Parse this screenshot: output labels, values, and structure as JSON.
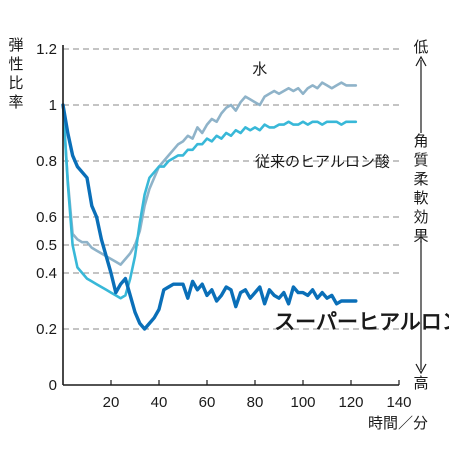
{
  "chart_data": {
    "type": "line",
    "ylabel": "弾性比率",
    "xlabel": "時間／分",
    "xlim": [
      0,
      140
    ],
    "ylim": [
      0,
      1.2
    ],
    "x_ticks": [
      "20",
      "40",
      "60",
      "80",
      "100",
      "120",
      "140"
    ],
    "y_ticks": [
      "0",
      "0.2",
      "0.4",
      "0.5",
      "0.6",
      "0.8",
      "1",
      "1.2"
    ],
    "grid": "horizontal dashed",
    "right_axis": {
      "title": "角質柔軟効果",
      "top_label": "低",
      "bottom_label": "高"
    },
    "series": [
      {
        "name": "水",
        "color": "#8fb3c9",
        "x": [
          0,
          2,
          4,
          6,
          8,
          10,
          12,
          14,
          16,
          18,
          20,
          22,
          24,
          26,
          28,
          30,
          32,
          34,
          36,
          38,
          40,
          42,
          44,
          46,
          48,
          50,
          52,
          54,
          56,
          58,
          60,
          62,
          64,
          66,
          68,
          70,
          72,
          74,
          76,
          78,
          80,
          82,
          84,
          86,
          88,
          90,
          92,
          94,
          96,
          98,
          100,
          102,
          104,
          106,
          108,
          110,
          112,
          114,
          116,
          118,
          120,
          122
        ],
        "values": [
          1.0,
          0.73,
          0.54,
          0.52,
          0.51,
          0.51,
          0.49,
          0.48,
          0.47,
          0.46,
          0.45,
          0.44,
          0.43,
          0.45,
          0.47,
          0.5,
          0.55,
          0.64,
          0.7,
          0.74,
          0.78,
          0.8,
          0.82,
          0.84,
          0.86,
          0.87,
          0.89,
          0.88,
          0.92,
          0.9,
          0.93,
          0.95,
          0.94,
          0.97,
          0.99,
          1.0,
          0.98,
          1.01,
          1.03,
          1.02,
          1.01,
          1.0,
          1.03,
          1.04,
          1.05,
          1.04,
          1.05,
          1.06,
          1.05,
          1.06,
          1.04,
          1.06,
          1.07,
          1.06,
          1.08,
          1.07,
          1.06,
          1.07,
          1.08,
          1.07,
          1.07,
          1.07
        ]
      },
      {
        "name": "従来のヒアルロン酸",
        "color": "#38b8d8",
        "x": [
          0,
          2,
          4,
          6,
          8,
          10,
          12,
          14,
          16,
          18,
          20,
          22,
          24,
          26,
          28,
          30,
          32,
          34,
          36,
          38,
          40,
          42,
          44,
          46,
          48,
          50,
          52,
          54,
          56,
          58,
          60,
          62,
          64,
          66,
          68,
          70,
          72,
          74,
          76,
          78,
          80,
          82,
          84,
          86,
          88,
          90,
          92,
          94,
          96,
          98,
          100,
          102,
          104,
          106,
          108,
          110,
          112,
          114,
          116,
          118,
          120,
          122
        ],
        "values": [
          1.0,
          0.72,
          0.5,
          0.42,
          0.4,
          0.38,
          0.37,
          0.36,
          0.35,
          0.34,
          0.33,
          0.32,
          0.31,
          0.32,
          0.38,
          0.46,
          0.58,
          0.68,
          0.74,
          0.76,
          0.78,
          0.78,
          0.8,
          0.81,
          0.82,
          0.82,
          0.84,
          0.84,
          0.86,
          0.86,
          0.88,
          0.87,
          0.89,
          0.88,
          0.9,
          0.89,
          0.91,
          0.9,
          0.92,
          0.91,
          0.92,
          0.91,
          0.93,
          0.92,
          0.92,
          0.93,
          0.93,
          0.94,
          0.93,
          0.93,
          0.94,
          0.93,
          0.94,
          0.94,
          0.93,
          0.94,
          0.94,
          0.94,
          0.93,
          0.94,
          0.94,
          0.94
        ]
      },
      {
        "name": "スーパーヒアルロン酸",
        "color": "#0a6fb8",
        "x": [
          0,
          2,
          4,
          6,
          8,
          10,
          12,
          14,
          16,
          18,
          20,
          22,
          24,
          26,
          28,
          30,
          32,
          34,
          36,
          38,
          40,
          42,
          44,
          46,
          48,
          50,
          52,
          54,
          56,
          58,
          60,
          62,
          64,
          66,
          68,
          70,
          72,
          74,
          76,
          78,
          80,
          82,
          84,
          86,
          88,
          90,
          92,
          94,
          96,
          98,
          100,
          102,
          104,
          106,
          108,
          110,
          112,
          114,
          116,
          118,
          120,
          122
        ],
        "values": [
          1.0,
          0.9,
          0.82,
          0.78,
          0.76,
          0.74,
          0.64,
          0.6,
          0.52,
          0.46,
          0.4,
          0.33,
          0.36,
          0.38,
          0.32,
          0.26,
          0.22,
          0.2,
          0.22,
          0.24,
          0.27,
          0.34,
          0.35,
          0.36,
          0.36,
          0.36,
          0.31,
          0.37,
          0.34,
          0.36,
          0.32,
          0.34,
          0.3,
          0.32,
          0.35,
          0.34,
          0.28,
          0.33,
          0.34,
          0.31,
          0.33,
          0.35,
          0.29,
          0.34,
          0.32,
          0.31,
          0.33,
          0.29,
          0.35,
          0.33,
          0.33,
          0.32,
          0.34,
          0.31,
          0.33,
          0.31,
          0.32,
          0.29,
          0.3,
          0.3,
          0.3,
          0.3
        ]
      }
    ],
    "annotations": [
      {
        "text": "水",
        "series": 0,
        "at_x": 82,
        "at_y": 1.11
      },
      {
        "text": "従来のヒアルロン酸",
        "series": 1,
        "at_x": 80,
        "at_y": 0.78
      },
      {
        "text": "スーパーヒアルロン酸",
        "series": 2,
        "at_x": 88,
        "at_y": 0.2
      }
    ]
  }
}
